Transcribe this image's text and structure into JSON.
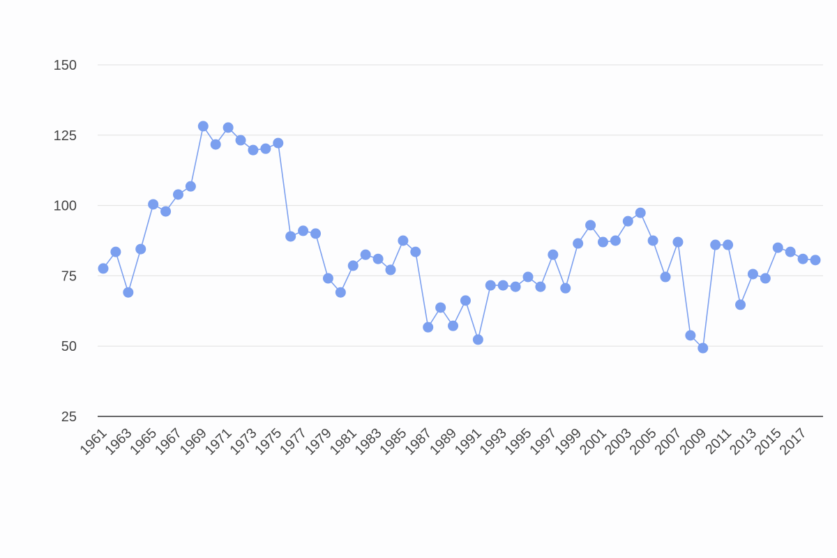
{
  "chart_data": {
    "type": "line",
    "x": [
      1961,
      1962,
      1963,
      1964,
      1965,
      1966,
      1967,
      1968,
      1969,
      1970,
      1971,
      1972,
      1973,
      1974,
      1975,
      1976,
      1977,
      1978,
      1979,
      1980,
      1981,
      1982,
      1983,
      1984,
      1985,
      1986,
      1987,
      1988,
      1989,
      1990,
      1991,
      1992,
      1993,
      1994,
      1995,
      1996,
      1997,
      1998,
      1999,
      2000,
      2001,
      2002,
      2003,
      2004,
      2005,
      2006,
      2007,
      2008,
      2009,
      2010,
      2011,
      2012,
      2013,
      2014,
      2015,
      2016,
      2017,
      2018
    ],
    "series": [
      {
        "color": "#7b9fef",
        "values": [
          77.6,
          83.5,
          69.1,
          84.5,
          100.4,
          97.9,
          103.9,
          106.8,
          128.2,
          121.7,
          127.7,
          123.2,
          119.7,
          120.2,
          122.2,
          89.0,
          91.0,
          90.0,
          74.1,
          69.1,
          78.6,
          82.5,
          81.0,
          77.1,
          87.5,
          83.5,
          56.7,
          63.7,
          57.2,
          66.2,
          52.3,
          71.6,
          71.6,
          71.1,
          74.6,
          71.1,
          82.5,
          70.6,
          86.5,
          93.0,
          87.0,
          87.5,
          94.4,
          97.4,
          87.5,
          74.6,
          87.0,
          53.8,
          49.3,
          86.0,
          86.0,
          64.7,
          75.6,
          74.1,
          85.0,
          83.5,
          81.0,
          80.6
        ]
      }
    ],
    "xlim": [
      1961,
      2018
    ],
    "xticks": [
      1961,
      1963,
      1965,
      1967,
      1969,
      1971,
      1973,
      1975,
      1977,
      1979,
      1981,
      1983,
      1985,
      1987,
      1989,
      1991,
      1993,
      1995,
      1997,
      1999,
      2001,
      2003,
      2005,
      2007,
      2009,
      2011,
      2013,
      2015,
      2017
    ],
    "ylim": [
      25,
      150
    ],
    "yticks": [
      25,
      50,
      75,
      100,
      125,
      150
    ],
    "grid": true
  }
}
